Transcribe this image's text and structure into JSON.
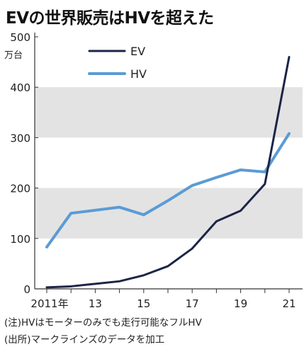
{
  "chart_data": {
    "type": "line",
    "title": "EVの世界販売はHVを超えた",
    "unit": "万台",
    "x": [
      2011,
      2012,
      2013,
      2014,
      2015,
      2016,
      2017,
      2018,
      2019,
      2020,
      2021
    ],
    "x_tick_labels": [
      {
        "x": 2011,
        "label": "2011年"
      },
      {
        "x": 2013,
        "label": "13"
      },
      {
        "x": 2015,
        "label": "15"
      },
      {
        "x": 2017,
        "label": "17"
      },
      {
        "x": 2019,
        "label": "19"
      },
      {
        "x": 2021,
        "label": "21"
      }
    ],
    "y_ticks": [
      0,
      100,
      200,
      300,
      400,
      500
    ],
    "ylim": [
      0,
      500
    ],
    "xlim": [
      2011,
      2021
    ],
    "grid": "alternating bands",
    "legend_position": "top-left",
    "series": [
      {
        "name": "EV",
        "color": "#1c2447",
        "values": [
          3,
          5,
          10,
          15,
          27,
          45,
          80,
          134,
          155,
          208,
          460
        ]
      },
      {
        "name": "HV",
        "color": "#5b9bd5",
        "values": [
          83,
          150,
          156,
          162,
          147,
          175,
          205,
          221,
          236,
          232,
          308
        ]
      }
    ]
  },
  "colors": {
    "band": "#e3e3e3",
    "axis": "#333333"
  },
  "notes": [
    "(注)HVはモーターのみでも走行可能なフルHV",
    "(出所)マークラインズのデータを加工"
  ]
}
